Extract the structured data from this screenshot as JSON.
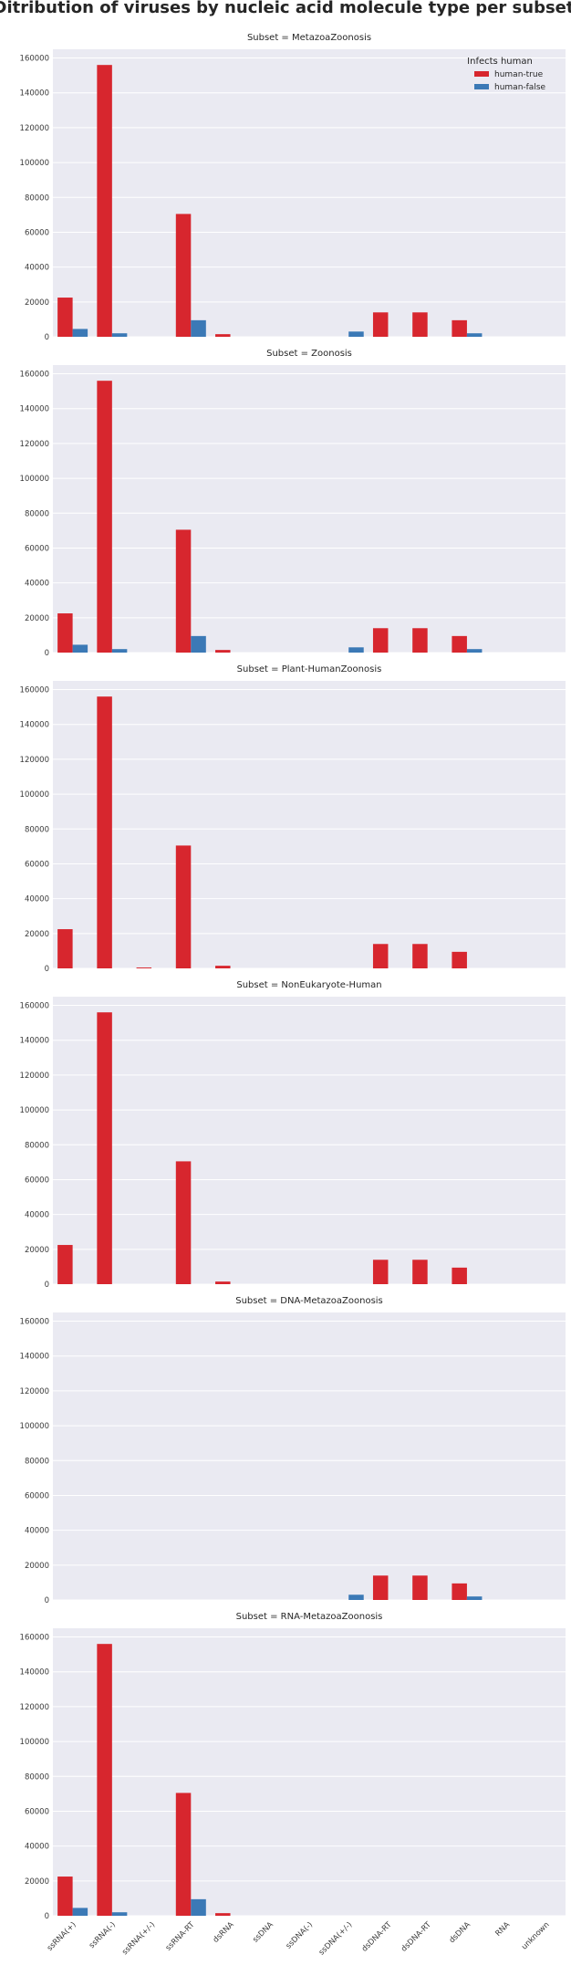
{
  "colors": {
    "human-true": "#d7262e",
    "human-false": "#3b79b6",
    "panel_bg": "#eaeaf2",
    "grid": "#ffffff"
  },
  "chart_data": {
    "type": "bar",
    "title": "Ditribution of viruses by nucleic acid molecule type per subset",
    "categories": [
      "ssRNA(+)",
      "ssRNA(-)",
      "ssRNA(+/-)",
      "ssRNA-RT",
      "dsRNA",
      "ssDNA",
      "ssDNA(-)",
      "ssDNA(+/-)",
      "dsDNA-RT",
      "dsDNA-RT",
      "dsDNA",
      "RNA",
      "unknown"
    ],
    "y_ticks": [
      "0",
      "20000",
      "40000",
      "60000",
      "80000",
      "100000",
      "120000",
      "140000",
      "160000"
    ],
    "ylim": [
      0,
      165000
    ],
    "grid": true,
    "legend": {
      "title": "Infects human",
      "placement": "top-right",
      "entries": [
        "human-true",
        "human-false"
      ]
    },
    "series_names": [
      "human-true",
      "human-false"
    ],
    "panels": [
      {
        "title": "Subset = MetazoaZoonosis",
        "series": [
          {
            "name": "human-true",
            "values": [
              22500,
              156000,
              0,
              70500,
              1500,
              0,
              0,
              0,
              14000,
              14000,
              9500,
              0,
              0
            ]
          },
          {
            "name": "human-false",
            "values": [
              4500,
              2000,
              0,
              9500,
              0,
              0,
              0,
              3000,
              0,
              0,
              2000,
              0,
              0
            ]
          }
        ]
      },
      {
        "title": "Subset = Zoonosis",
        "series": [
          {
            "name": "human-true",
            "values": [
              22500,
              156000,
              0,
              70500,
              1500,
              0,
              0,
              0,
              14000,
              14000,
              9500,
              0,
              0
            ]
          },
          {
            "name": "human-false",
            "values": [
              4500,
              2000,
              0,
              9500,
              0,
              0,
              0,
              3000,
              0,
              0,
              2000,
              0,
              0
            ]
          }
        ]
      },
      {
        "title": "Subset = Plant-HumanZoonosis",
        "series": [
          {
            "name": "human-true",
            "values": [
              22500,
              156000,
              500,
              70500,
              1500,
              0,
              0,
              0,
              14000,
              14000,
              9500,
              0,
              0
            ]
          },
          {
            "name": "human-false",
            "values": [
              0,
              0,
              0,
              0,
              0,
              0,
              0,
              0,
              0,
              0,
              0,
              0,
              0
            ]
          }
        ]
      },
      {
        "title": "Subset = NonEukaryote-Human",
        "series": [
          {
            "name": "human-true",
            "values": [
              22500,
              156000,
              0,
              70500,
              1500,
              0,
              0,
              0,
              14000,
              14000,
              9500,
              0,
              0
            ]
          },
          {
            "name": "human-false",
            "values": [
              0,
              0,
              0,
              0,
              0,
              0,
              0,
              0,
              0,
              0,
              0,
              0,
              0
            ]
          }
        ]
      },
      {
        "title": "Subset = DNA-MetazoaZoonosis",
        "series": [
          {
            "name": "human-true",
            "values": [
              0,
              0,
              0,
              0,
              0,
              0,
              0,
              0,
              14000,
              14000,
              9500,
              0,
              0
            ]
          },
          {
            "name": "human-false",
            "values": [
              0,
              0,
              0,
              0,
              0,
              0,
              0,
              3000,
              0,
              0,
              2000,
              0,
              0
            ]
          }
        ]
      },
      {
        "title": "Subset = RNA-MetazoaZoonosis",
        "series": [
          {
            "name": "human-true",
            "values": [
              22500,
              156000,
              0,
              70500,
              1500,
              0,
              0,
              0,
              0,
              0,
              0,
              0,
              0
            ]
          },
          {
            "name": "human-false",
            "values": [
              4500,
              2000,
              0,
              9500,
              0,
              0,
              0,
              0,
              0,
              0,
              0,
              0,
              0
            ]
          }
        ]
      }
    ]
  }
}
